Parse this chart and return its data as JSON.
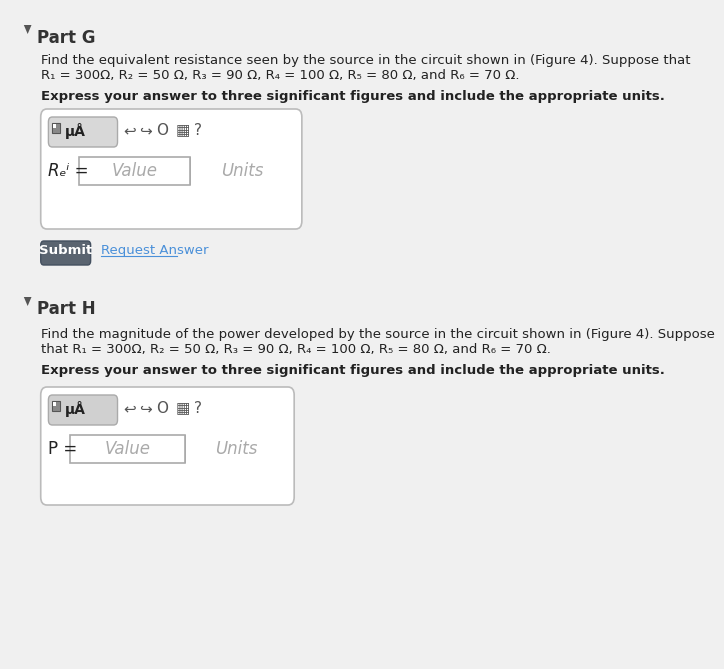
{
  "background_color": "#f0f0f0",
  "part_g": {
    "label": "Part G",
    "body_text_line1": "Find the equivalent resistance seen by the source in the circuit shown in (Figure 4). Suppose that",
    "body_text_line2": "R₁ = 300Ω, R₂ = 50 Ω, R₃ = 90 Ω, R₄ = 100 Ω, R₅ = 80 Ω, and R₆ = 70 Ω.",
    "instruction": "Express your answer to three significant figures and include the appropriate units.",
    "req_label": "Rₑⁱ =",
    "value_placeholder": "Value",
    "units_placeholder": "Units",
    "submit_label": "Submit",
    "request_label": "Request Answer"
  },
  "part_h": {
    "label": "Part H",
    "body_text_line1": "Find the magnitude of the power developed by the source in the circuit shown in (Figure 4). Suppose",
    "body_text_line2": "that R₁ = 300Ω, R₂ = 50 Ω, R₃ = 90 Ω, R₄ = 100 Ω, R₅ = 80 Ω, and R₆ = 70 Ω.",
    "instruction": "Express your answer to three significant figures and include the appropriate units.",
    "p_label": "P =",
    "value_placeholder": "Value",
    "units_placeholder": "Units"
  },
  "colors": {
    "background": "#f0f0f0",
    "white": "#ffffff",
    "box_border": "#cccccc",
    "submit_btn": "#5a6268",
    "submit_text": "#ffffff",
    "request_link": "#4a90d9",
    "toolbar_bg": "#e8e8e8",
    "toolbar_dark": "#666666",
    "triangle_color": "#555555",
    "text_color": "#222222",
    "placeholder_color": "#aaaaaa",
    "input_border": "#999999",
    "part_label_color": "#333333"
  }
}
